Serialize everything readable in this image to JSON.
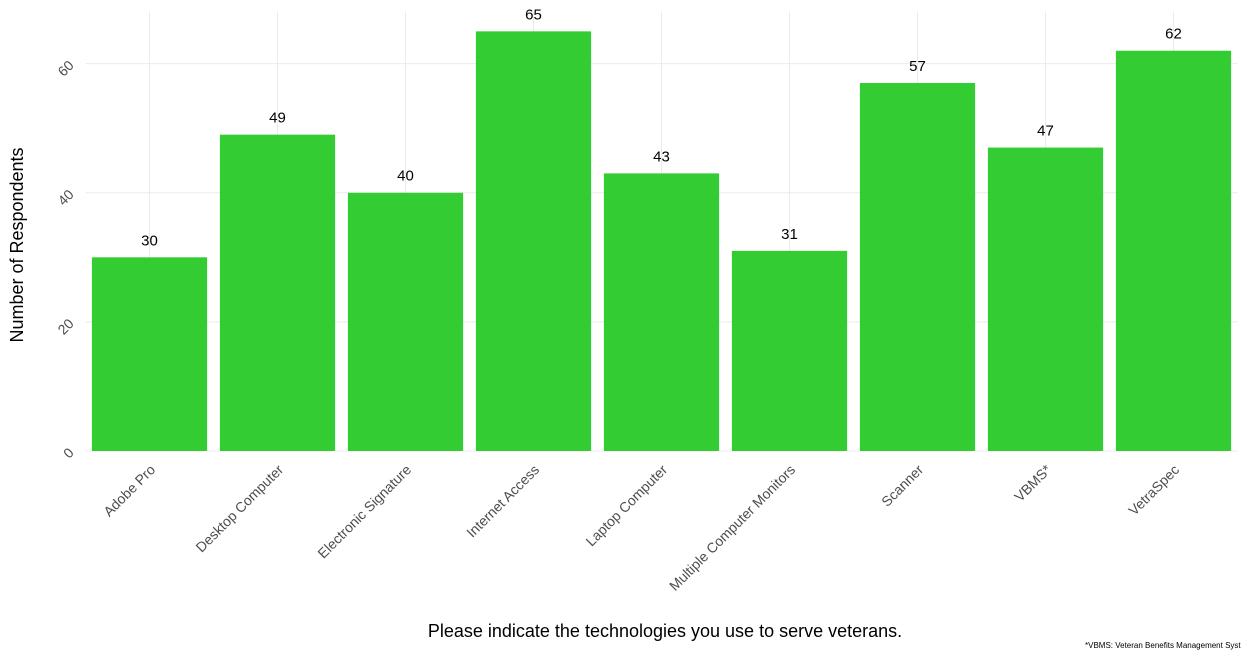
{
  "chart_data": {
    "type": "bar",
    "x_label": "Please indicate the technologies you use to serve veterans.",
    "y_label": "Number of Respondents",
    "footnote": "*VBMS: Veteran Benefits Management Syste",
    "categories": [
      "Adobe Pro",
      "Desktop Computer",
      "Electronic Signature",
      "Internet Access",
      "Laptop Computer",
      "Multiple Computer Monitors",
      "Scanner",
      "VBMS*",
      "VetraSpec"
    ],
    "values": [
      30,
      49,
      40,
      65,
      43,
      31,
      57,
      47,
      62
    ],
    "color": "#33cc33",
    "ylim": [
      0,
      68
    ],
    "yticks": [
      0,
      20,
      40,
      60
    ],
    "grid": true
  }
}
